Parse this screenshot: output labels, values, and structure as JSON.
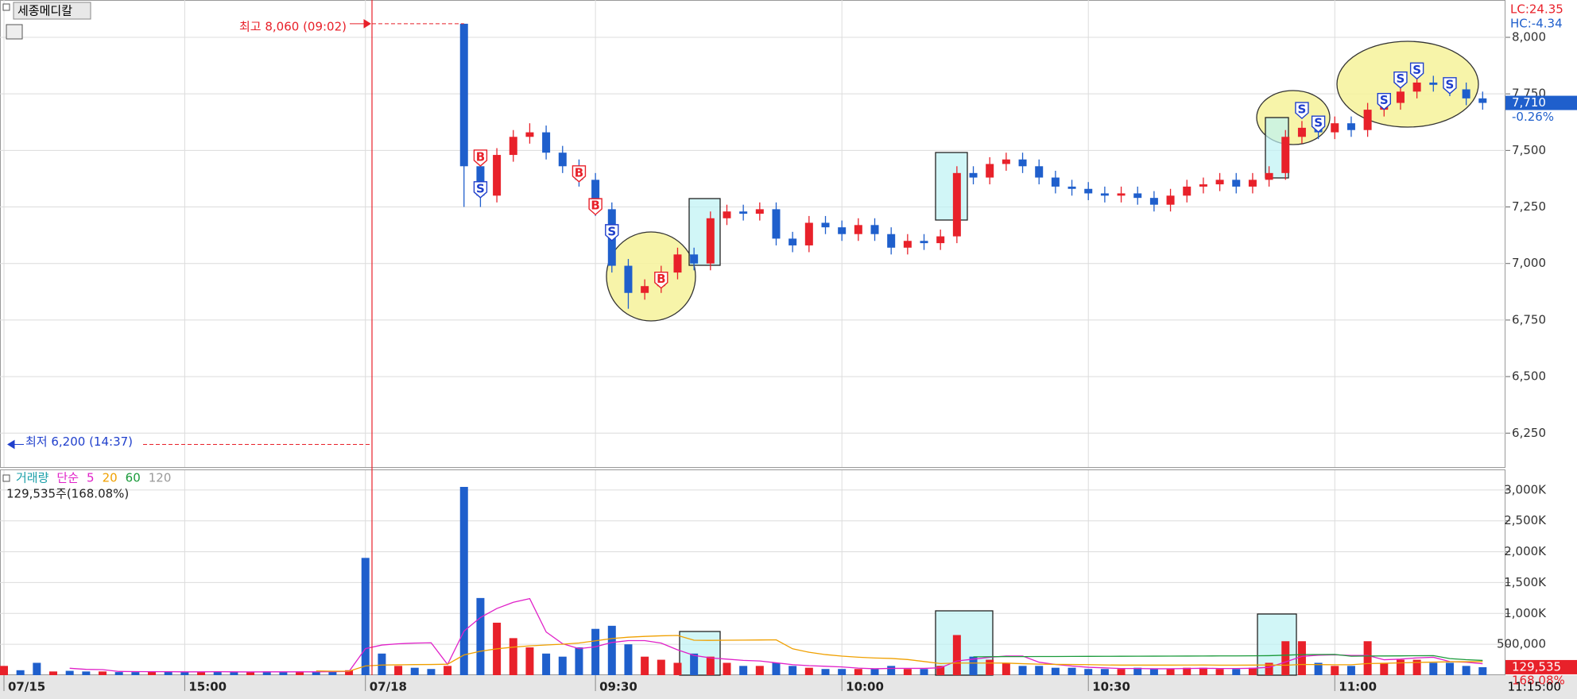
{
  "stock_name": "세종메디칼",
  "chart_data": [
    {
      "type": "candlestick",
      "categories": [
        "07/15",
        null,
        null,
        null,
        null,
        null,
        null,
        null,
        null,
        null,
        null,
        "15:00",
        null,
        null,
        null,
        null,
        null,
        null,
        null,
        null,
        null,
        null,
        "07/18",
        null,
        null,
        null,
        null,
        null,
        null,
        null,
        null,
        null,
        null,
        null,
        null,
        null,
        "09:30",
        null,
        null,
        null,
        null,
        null,
        null,
        null,
        null,
        null,
        null,
        null,
        null,
        null,
        null,
        "10:00",
        null,
        null,
        null,
        null,
        null,
        null,
        null,
        null,
        null,
        null,
        null,
        null,
        null,
        null,
        "10:30",
        null,
        null,
        null,
        null,
        null,
        null,
        null,
        null,
        null,
        null,
        null,
        null,
        null,
        null,
        "11:00",
        null,
        null,
        null,
        null,
        null,
        null,
        null,
        null,
        null,
        null
      ],
      "open": [
        null,
        null,
        null,
        null,
        null,
        null,
        null,
        null,
        null,
        null,
        null,
        null,
        null,
        null,
        null,
        null,
        null,
        null,
        null,
        null,
        null,
        null,
        null,
        null,
        null,
        null,
        null,
        null,
        8060,
        7430,
        7300,
        7480,
        7560,
        7580,
        7490,
        7430,
        7370,
        7240,
        6990,
        6870,
        6900,
        6960,
        7040,
        7000,
        7200,
        7230,
        7220,
        7240,
        7110,
        7080,
        7180,
        7160,
        7130,
        7170,
        7130,
        7070,
        7100,
        7090,
        7120,
        7400,
        7380,
        7440,
        7460,
        7430,
        7380,
        7340,
        7330,
        7310,
        7300,
        7310,
        7290,
        7260,
        7300,
        7340,
        7350,
        7370,
        7340,
        7370,
        7400,
        7560,
        7600,
        7580,
        7620,
        7590,
        7680,
        7710,
        7760,
        7800,
        7790,
        7770,
        7730,
        null
      ],
      "high": [
        null,
        null,
        null,
        null,
        null,
        null,
        null,
        null,
        null,
        null,
        null,
        null,
        null,
        null,
        null,
        null,
        null,
        null,
        null,
        null,
        null,
        null,
        null,
        null,
        null,
        null,
        null,
        null,
        8060,
        7460,
        7510,
        7590,
        7620,
        7610,
        7520,
        7460,
        7400,
        7270,
        7020,
        6930,
        6990,
        7070,
        7070,
        7230,
        7260,
        7260,
        7270,
        7270,
        7140,
        7210,
        7210,
        7190,
        7200,
        7200,
        7160,
        7130,
        7130,
        7150,
        7430,
        7430,
        7470,
        7490,
        7490,
        7460,
        7410,
        7370,
        7360,
        7340,
        7340,
        7340,
        7320,
        7330,
        7370,
        7380,
        7400,
        7400,
        7400,
        7430,
        7590,
        7630,
        7630,
        7650,
        7650,
        7710,
        7740,
        7790,
        7830,
        7830,
        7820,
        7800,
        7760,
        null
      ],
      "low": [
        null,
        null,
        null,
        null,
        null,
        null,
        null,
        null,
        null,
        null,
        null,
        null,
        null,
        null,
        null,
        null,
        null,
        null,
        null,
        null,
        null,
        null,
        null,
        null,
        null,
        null,
        null,
        null,
        7250,
        7250,
        7270,
        7450,
        7530,
        7460,
        7400,
        7340,
        7210,
        6960,
        6800,
        6840,
        6870,
        6930,
        6970,
        6970,
        7170,
        7190,
        7190,
        7080,
        7050,
        7050,
        7130,
        7100,
        7100,
        7100,
        7040,
        7040,
        7060,
        7060,
        7090,
        7350,
        7350,
        7410,
        7400,
        7350,
        7310,
        7300,
        7280,
        7270,
        7270,
        7260,
        7230,
        7230,
        7270,
        7310,
        7320,
        7310,
        7310,
        7340,
        7370,
        7530,
        7550,
        7550,
        7560,
        7560,
        7650,
        7680,
        7730,
        7760,
        7740,
        7700,
        7680,
        null
      ],
      "close": [
        null,
        null,
        null,
        null,
        null,
        null,
        null,
        null,
        null,
        null,
        null,
        null,
        null,
        null,
        null,
        null,
        null,
        null,
        null,
        null,
        null,
        null,
        null,
        null,
        null,
        null,
        null,
        null,
        7430,
        7300,
        7480,
        7560,
        7580,
        7490,
        7430,
        7370,
        7240,
        6990,
        6870,
        6900,
        6960,
        7040,
        7000,
        7200,
        7230,
        7220,
        7240,
        7110,
        7080,
        7180,
        7160,
        7130,
        7170,
        7130,
        7070,
        7100,
        7090,
        7120,
        7400,
        7380,
        7440,
        7460,
        7430,
        7380,
        7340,
        7330,
        7310,
        7300,
        7310,
        7290,
        7260,
        7300,
        7340,
        7350,
        7370,
        7340,
        7370,
        7400,
        7560,
        7600,
        7580,
        7620,
        7590,
        7680,
        7710,
        7760,
        7800,
        7790,
        7770,
        7730,
        7710,
        null
      ],
      "up_color": "#e8212a",
      "down_color": "#1f5fcc",
      "ylim": [
        6100,
        8165
      ],
      "yticks": [
        {
          "value": 6250,
          "label": "6,250"
        },
        {
          "value": 6500,
          "label": "6,500"
        },
        {
          "value": 6750,
          "label": "6,750"
        },
        {
          "value": 7000,
          "label": "7,000"
        },
        {
          "value": 7250,
          "label": "7,250"
        },
        {
          "value": 7500,
          "label": "7,500"
        },
        {
          "value": 7750,
          "label": "7,750"
        },
        {
          "value": 8000,
          "label": "8,000"
        }
      ],
      "grid": true,
      "high_mark": {
        "label": "최고 8,060 (09:02)",
        "value": 8060
      },
      "low_mark": {
        "label": "최저 6,200 (14:37)",
        "value": 6200
      },
      "signals": [
        {
          "label": "B",
          "x": 29,
          "y": 7470,
          "color": "#e8212a"
        },
        {
          "label": "S",
          "x": 29,
          "y": 7330,
          "color": "#1f3fcc"
        },
        {
          "label": "B",
          "x": 35,
          "y": 7400,
          "color": "#e8212a"
        },
        {
          "label": "B",
          "x": 36,
          "y": 7255,
          "color": "#e8212a"
        },
        {
          "label": "S",
          "x": 37,
          "y": 7140,
          "color": "#1f3fcc"
        },
        {
          "label": "B",
          "x": 40,
          "y": 6930,
          "color": "#e8212a"
        },
        {
          "label": "S",
          "x": 79,
          "y": 7680,
          "color": "#1f3fcc"
        },
        {
          "label": "S",
          "x": 80,
          "y": 7620,
          "color": "#1f3fcc"
        },
        {
          "label": "S",
          "x": 84,
          "y": 7720,
          "color": "#1f3fcc"
        },
        {
          "label": "S",
          "x": 85,
          "y": 7815,
          "color": "#1f3fcc"
        },
        {
          "label": "S",
          "x": 86,
          "y": 7855,
          "color": "#1f3fcc"
        },
        {
          "label": "S",
          "x": 88,
          "y": 7790,
          "color": "#1f3fcc"
        }
      ],
      "lc": "LC:24.35",
      "hc": "HC:-4.34",
      "last": {
        "value": 7710,
        "label": "7,710"
      },
      "change": "-0.26%",
      "time_label": "11:15:00"
    },
    {
      "type": "bar",
      "series": [
        {
          "name": "거래량",
          "color": "#1a9fa8",
          "values": [
            150000,
            80000,
            200000,
            60000,
            70000,
            60000,
            60000,
            50000,
            50000,
            60000,
            60000,
            50000,
            50000,
            60000,
            50000,
            50000,
            60000,
            50000,
            60000,
            50000,
            60000,
            80000,
            1900000,
            350000,
            150000,
            120000,
            100000,
            150000,
            3050000,
            1250000,
            850000,
            600000,
            450000,
            350000,
            300000,
            450000,
            750000,
            800000,
            500000,
            300000,
            250000,
            200000,
            350000,
            300000,
            200000,
            150000,
            150000,
            200000,
            150000,
            120000,
            100000,
            100000,
            100000,
            100000,
            150000,
            100000,
            100000,
            150000,
            650000,
            300000,
            250000,
            200000,
            150000,
            150000,
            120000,
            120000,
            100000,
            100000,
            100000,
            120000,
            100000,
            100000,
            120000,
            120000,
            100000,
            100000,
            120000,
            200000,
            550000,
            550000,
            200000,
            150000,
            150000,
            550000,
            200000,
            250000,
            250000,
            200000,
            200000,
            150000,
            129535,
            null
          ]
        }
      ],
      "ma_label": "단순",
      "ma": [
        {
          "period": 5,
          "color": "#e020c8"
        },
        {
          "period": 20,
          "color": "#f0a000"
        },
        {
          "period": 60,
          "color": "#1a9a3a"
        },
        {
          "period": 120,
          "color": "#999999"
        }
      ],
      "summary": "129,535주(168.08%)",
      "last": {
        "value": 129535,
        "label": "129,535"
      },
      "ratio": "168.08%",
      "ylim": [
        0,
        3320000
      ],
      "yticks": [
        {
          "value": 500000,
          "label": "500,000"
        },
        {
          "value": 1000000,
          "label": "1,000K"
        },
        {
          "value": 1500000,
          "label": "1,500K"
        },
        {
          "value": 2000000,
          "label": "2,000K"
        },
        {
          "value": 2500000,
          "label": "2,500K"
        },
        {
          "value": 3000000,
          "label": "3,000K"
        }
      ],
      "grid": true
    }
  ]
}
